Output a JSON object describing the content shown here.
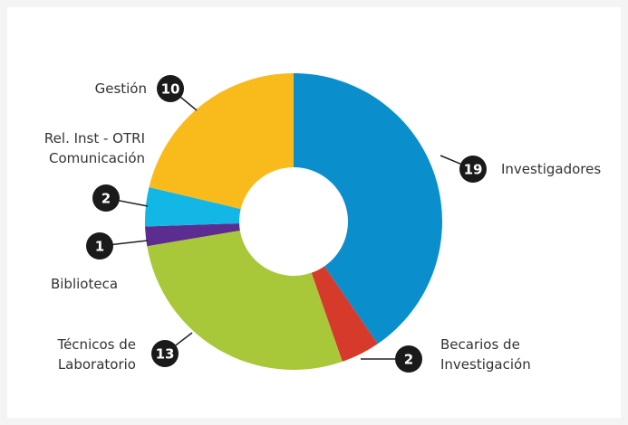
{
  "chart_data": {
    "type": "donut",
    "categories": [
      "Investigadores",
      "Becarios de\nInvestigación",
      "Técnicos de\nLaboratorio",
      "Biblioteca",
      "Rel. Inst - OTRI\nComunicación",
      "Gestión"
    ],
    "values": [
      19,
      2,
      13,
      1,
      2,
      10
    ],
    "colors": [
      "#0a8fcc",
      "#d63a2a",
      "#a8c83a",
      "#5c2d91",
      "#12b7e6",
      "#f9bb1c"
    ]
  }
}
